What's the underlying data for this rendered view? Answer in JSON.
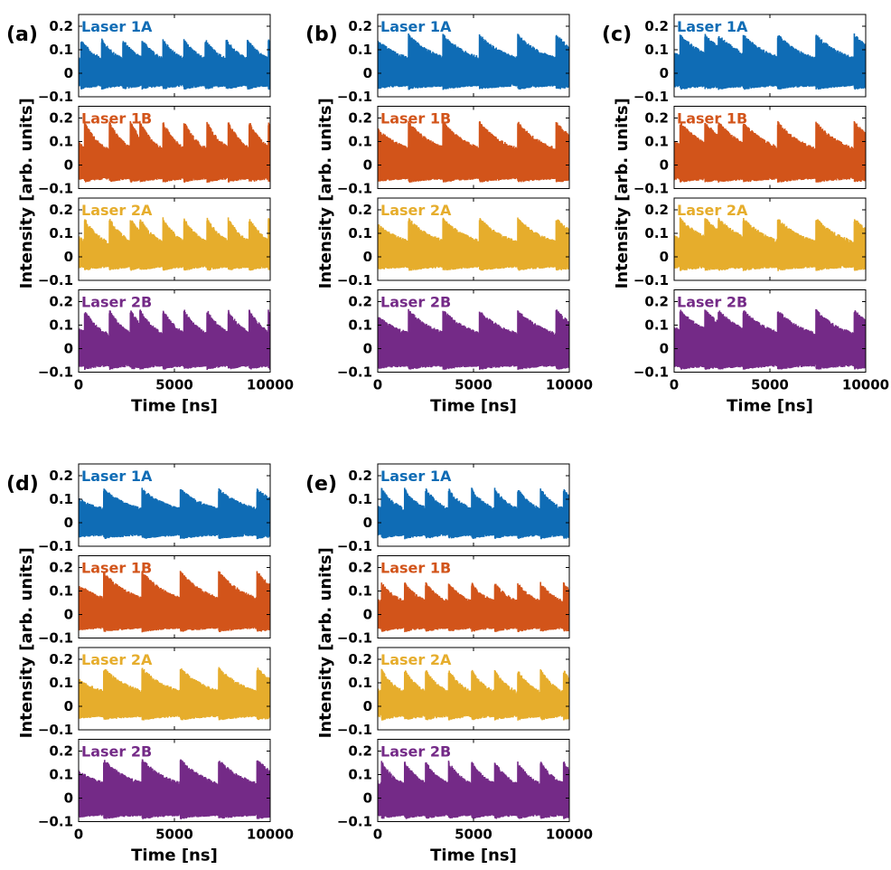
{
  "figure": {
    "x_label": "Time [ns]",
    "y_label": "Intensity [arb. units]"
  },
  "chart_data": [
    {
      "panel": "(a)",
      "type": "line",
      "xlabel": "Time [ns]",
      "ylabel": "Intensity [arb. units]",
      "xlim": [
        0,
        10000
      ],
      "ylim": [
        -0.1,
        0.25
      ],
      "xticks": [
        "0",
        "5000",
        "10000"
      ],
      "yticks": [
        "−0.1",
        "0",
        "0.1",
        "0.2"
      ],
      "series": [
        {
          "name": "Laser 1A",
          "color": "#0f6cb5",
          "pulse_times_ns": [
            1200,
            2300,
            3300,
            4400,
            5500,
            6600,
            7700,
            8800,
            9900
          ],
          "peak": 0.15,
          "trough": -0.065
        },
        {
          "name": "Laser 1B",
          "color": "#d2541a",
          "pulse_times_ns": [
            300,
            1600,
            2700,
            3200,
            4400,
            5500,
            6700,
            7800,
            8900,
            9900
          ],
          "peak": 0.19,
          "trough": -0.07
        },
        {
          "name": "Laser 2A",
          "color": "#e6ad2c",
          "pulse_times_ns": [
            300,
            1600,
            2700,
            3200,
            4400,
            5500,
            6700,
            7800,
            8900,
            9900
          ],
          "peak": 0.17,
          "trough": -0.055
        },
        {
          "name": "Laser 2B",
          "color": "#742a87",
          "pulse_times_ns": [
            300,
            1600,
            2700,
            3200,
            4400,
            5500,
            6700,
            7800,
            8900,
            9900
          ],
          "peak": 0.17,
          "trough": -0.085
        }
      ]
    },
    {
      "panel": "(b)",
      "type": "line",
      "xlabel": "Time [ns]",
      "ylabel": "Intensity [arb. units]",
      "xlim": [
        0,
        10000
      ],
      "ylim": [
        -0.1,
        0.25
      ],
      "xticks": [
        "0",
        "5000",
        "10000"
      ],
      "yticks": [
        "−0.1",
        "0",
        "0.1",
        "0.2"
      ],
      "series": [
        {
          "name": "Laser 1A",
          "color": "#0f6cb5",
          "pulse_times_ns": [
            1600,
            3400,
            5300,
            7300,
            9300
          ],
          "peak": 0.17,
          "trough": -0.065
        },
        {
          "name": "Laser 1B",
          "color": "#d2541a",
          "pulse_times_ns": [
            1600,
            3400,
            5300,
            7300,
            9300
          ],
          "peak": 0.19,
          "trough": -0.07
        },
        {
          "name": "Laser 2A",
          "color": "#e6ad2c",
          "pulse_times_ns": [
            1600,
            3400,
            5300,
            7300,
            9300
          ],
          "peak": 0.17,
          "trough": -0.055
        },
        {
          "name": "Laser 2B",
          "color": "#742a87",
          "pulse_times_ns": [
            1600,
            3400,
            5300,
            7300,
            9300
          ],
          "peak": 0.17,
          "trough": -0.085
        }
      ]
    },
    {
      "panel": "(c)",
      "type": "line",
      "xlabel": "Time [ns]",
      "ylabel": "Intensity [arb. units]",
      "xlim": [
        0,
        10000
      ],
      "ylim": [
        -0.1,
        0.25
      ],
      "xticks": [
        "0",
        "5000",
        "10000"
      ],
      "yticks": [
        "−0.1",
        "0",
        "0.1",
        "0.2"
      ],
      "series": [
        {
          "name": "Laser 1A",
          "color": "#0f6cb5",
          "pulse_times_ns": [
            300,
            1600,
            2300,
            3600,
            5400,
            7400,
            9400
          ],
          "peak": 0.17,
          "trough": -0.065
        },
        {
          "name": "Laser 1B",
          "color": "#d2541a",
          "pulse_times_ns": [
            300,
            1600,
            2300,
            3600,
            5400,
            7400,
            9400
          ],
          "peak": 0.19,
          "trough": -0.07
        },
        {
          "name": "Laser 2A",
          "color": "#e6ad2c",
          "pulse_times_ns": [
            300,
            1600,
            2300,
            3600,
            5400,
            7400,
            9400
          ],
          "peak": 0.17,
          "trough": -0.055
        },
        {
          "name": "Laser 2B",
          "color": "#742a87",
          "pulse_times_ns": [
            300,
            1600,
            2300,
            3600,
            5400,
            7400,
            9400
          ],
          "peak": 0.17,
          "trough": -0.085
        }
      ]
    },
    {
      "panel": "(d)",
      "type": "line",
      "xlabel": "Time [ns]",
      "ylabel": "Intensity [arb. units]",
      "xlim": [
        0,
        10000
      ],
      "ylim": [
        -0.1,
        0.25
      ],
      "xticks": [
        "0",
        "5000",
        "10000"
      ],
      "yticks": [
        "−0.1",
        "0",
        "0.1",
        "0.2"
      ],
      "series": [
        {
          "name": "Laser 1A",
          "color": "#0f6cb5",
          "pulse_times_ns": [
            1300,
            3300,
            5300,
            7300,
            9300
          ],
          "peak": 0.15,
          "trough": -0.065
        },
        {
          "name": "Laser 1B",
          "color": "#d2541a",
          "pulse_times_ns": [
            1300,
            3300,
            5300,
            7300,
            9300
          ],
          "peak": 0.19,
          "trough": -0.07
        },
        {
          "name": "Laser 2A",
          "color": "#e6ad2c",
          "pulse_times_ns": [
            1300,
            3300,
            5300,
            7300,
            9300
          ],
          "peak": 0.17,
          "trough": -0.055
        },
        {
          "name": "Laser 2B",
          "color": "#742a87",
          "pulse_times_ns": [
            1300,
            3300,
            5300,
            7300,
            9300
          ],
          "peak": 0.17,
          "trough": -0.085
        }
      ]
    },
    {
      "panel": "(e)",
      "type": "line",
      "xlabel": "Time [ns]",
      "ylabel": "Intensity [arb. units]",
      "xlim": [
        0,
        10000
      ],
      "ylim": [
        -0.1,
        0.25
      ],
      "xticks": [
        "0",
        "5000",
        "10000"
      ],
      "yticks": [
        "−0.1",
        "0",
        "0.1",
        "0.2"
      ],
      "series": [
        {
          "name": "Laser 1A",
          "color": "#0f6cb5",
          "pulse_times_ns": [
            200,
            1400,
            2500,
            3700,
            4900,
            6100,
            7300,
            8500,
            9700
          ],
          "peak": 0.15,
          "trough": -0.065
        },
        {
          "name": "Laser 1B",
          "color": "#d2541a",
          "pulse_times_ns": [
            200,
            1400,
            2500,
            3700,
            4900,
            6100,
            7300,
            8500,
            9700
          ],
          "peak": 0.14,
          "trough": -0.07
        },
        {
          "name": "Laser 2A",
          "color": "#e6ad2c",
          "pulse_times_ns": [
            200,
            1400,
            2500,
            3700,
            4900,
            6100,
            7300,
            8500,
            9700
          ],
          "peak": 0.16,
          "trough": -0.055
        },
        {
          "name": "Laser 2B",
          "color": "#742a87",
          "pulse_times_ns": [
            200,
            1400,
            2500,
            3700,
            4900,
            6100,
            7300,
            8500,
            9700
          ],
          "peak": 0.16,
          "trough": -0.085
        }
      ]
    }
  ]
}
